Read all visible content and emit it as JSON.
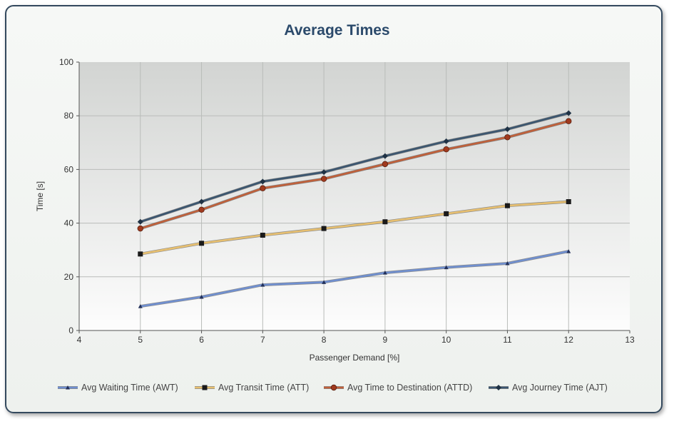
{
  "chart_data": {
    "type": "line",
    "title": "Average Times",
    "xlabel": "Passenger Demand [%]",
    "ylabel": "Time [s]",
    "xlim": [
      4,
      13
    ],
    "ylim": [
      0,
      100
    ],
    "x_ticks": [
      4,
      5,
      6,
      7,
      8,
      9,
      10,
      11,
      12,
      13
    ],
    "y_ticks": [
      0,
      20,
      40,
      60,
      80,
      100
    ],
    "grid": true,
    "legend_position": "bottom",
    "x": [
      5,
      6,
      7,
      8,
      9,
      10,
      11,
      12
    ],
    "series": [
      {
        "name": "Avg Waiting Time (AWT)",
        "color": "#6f8fd0",
        "marker": "triangle",
        "values": [
          9,
          12.5,
          17,
          18,
          21.5,
          23.5,
          25,
          29.5
        ]
      },
      {
        "name": "Avg Transit Time (ATT)",
        "color": "#e8c070",
        "marker": "square",
        "values": [
          28.5,
          32.5,
          35.5,
          38,
          40.5,
          43.5,
          46.5,
          48
        ]
      },
      {
        "name": "Avg Time to Destination (ATTD)",
        "color": "#c0603a",
        "marker": "circle",
        "values": [
          38,
          45,
          53,
          56.5,
          62,
          67.5,
          72,
          78
        ]
      },
      {
        "name": "Avg Journey Time (AJT)",
        "color": "#3b5670",
        "marker": "diamond",
        "values": [
          40.5,
          48,
          55.5,
          59,
          65,
          70.5,
          75,
          81
        ]
      }
    ]
  }
}
